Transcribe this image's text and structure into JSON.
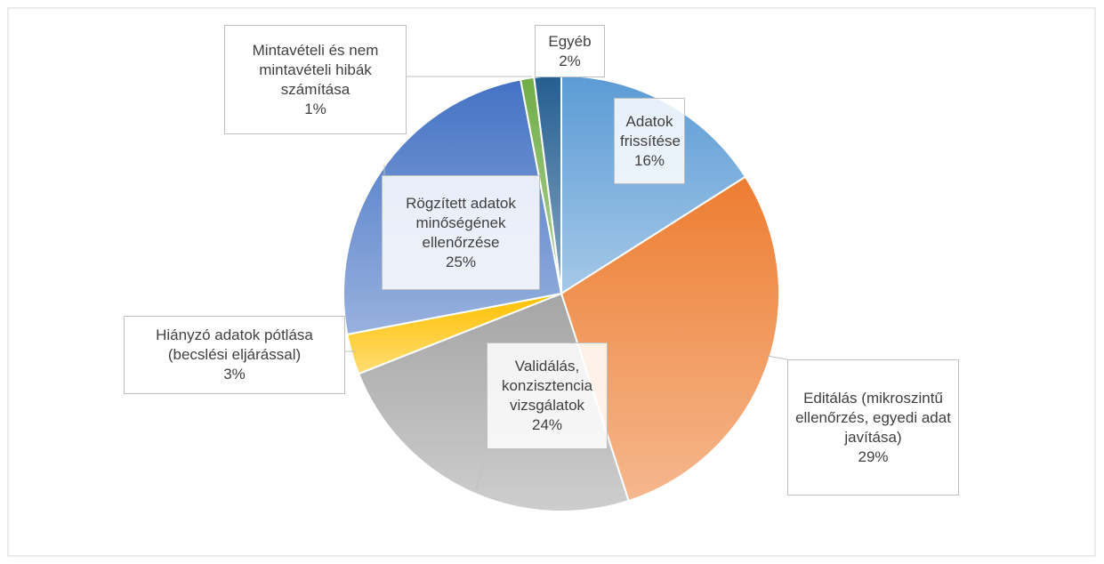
{
  "chart_data": {
    "type": "pie",
    "categories": [
      "Adatok frissítése",
      "Editálás (mikroszintű ellenőrzés, egyedi adat javítása)",
      "Validálás, konzisztencia vizsgálatok",
      "Hiányzó adatok pótlása (becslési eljárással)",
      "Rögzített adatok minőségének ellenőrzése",
      "Mintavételi és nem mintavételi hibák számítása",
      "Egyéb"
    ],
    "values": [
      16,
      29,
      24,
      3,
      25,
      1,
      2
    ],
    "value_labels": [
      "16%",
      "29%",
      "24%",
      "3%",
      "25%",
      "1%",
      "2%"
    ],
    "colors": [
      "#5b9bd5",
      "#ed7d31",
      "#a5a5a5",
      "#ffc000",
      "#4472c4",
      "#70ad47",
      "#255e91"
    ]
  }
}
